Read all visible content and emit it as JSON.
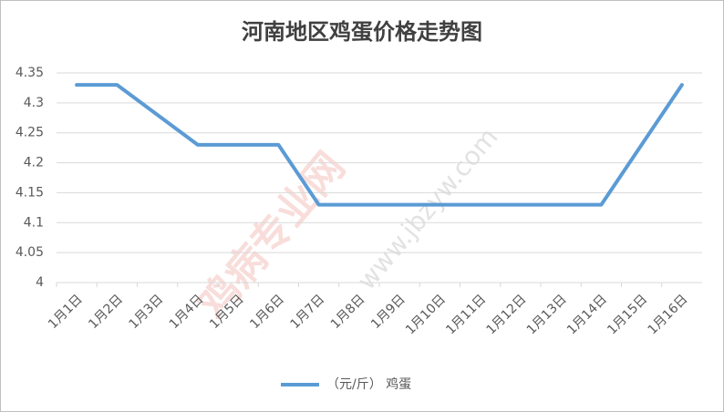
{
  "chart_data": {
    "type": "line",
    "title": "河南地区鸡蛋价格走势图",
    "categories": [
      "1月1日",
      "1月2日",
      "1月3日",
      "1月4日",
      "1月5日",
      "1月6日",
      "1月7日",
      "1月8日",
      "1月9日",
      "1月10日",
      "1月11日",
      "1月12日",
      "1月13日",
      "1月14日",
      "1月15日",
      "1月16日"
    ],
    "series": [
      {
        "name": "（元/斤） 鸡蛋",
        "color": "#5b9bd5",
        "values": [
          4.33,
          4.33,
          4.28,
          4.23,
          4.23,
          4.23,
          4.13,
          4.13,
          4.13,
          4.13,
          4.13,
          4.13,
          4.13,
          4.13,
          4.23,
          4.33
        ]
      }
    ],
    "ylim": [
      4,
      4.35
    ],
    "yticks": [
      4,
      4.05,
      4.1,
      4.15,
      4.2,
      4.25,
      4.3,
      4.35
    ],
    "grid": true,
    "legend": "bottom",
    "watermark": [
      "鸡病专业网",
      "www.jbzyw.com"
    ]
  }
}
